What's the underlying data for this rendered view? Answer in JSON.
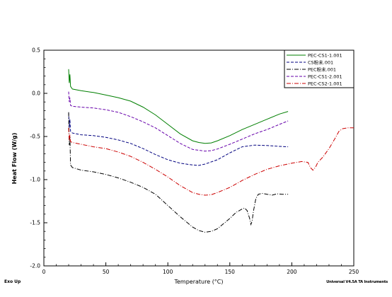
{
  "footer": {
    "left_text": "Exo Up",
    "right_text": "Universal V4.5A TA Instruments"
  },
  "chart_data": {
    "type": "line",
    "xlabel": "Temperature (°C)",
    "ylabel": "Heat Flow (W/g)",
    "xlim": [
      0,
      250
    ],
    "ylim": [
      -2.0,
      0.5
    ],
    "x_ticks": [
      0,
      50,
      100,
      150,
      200,
      250
    ],
    "y_ticks": [
      0.5,
      0.0,
      -0.5,
      -1.0,
      -1.5,
      -2.0
    ],
    "x_tick_labels": [
      "0",
      "50",
      "100",
      "150",
      "200",
      "250"
    ],
    "y_tick_labels": [
      "0.5",
      "0.0",
      "-0.5",
      "-1.0",
      "-1.5",
      "-2.0"
    ],
    "grid": false,
    "legend_position": "top-right",
    "series": [
      {
        "name": "PEC-CS1-1.001",
        "color": "#007f00",
        "dash": "solid",
        "points": [
          [
            20,
            0.28
          ],
          [
            20.5,
            0.12
          ],
          [
            21,
            0.22
          ],
          [
            21.5,
            0.08
          ],
          [
            23,
            0.05
          ],
          [
            30,
            0.03
          ],
          [
            40,
            0.01
          ],
          [
            50,
            -0.02
          ],
          [
            60,
            -0.05
          ],
          [
            70,
            -0.09
          ],
          [
            80,
            -0.16
          ],
          [
            90,
            -0.25
          ],
          [
            100,
            -0.36
          ],
          [
            110,
            -0.47
          ],
          [
            120,
            -0.55
          ],
          [
            125,
            -0.57
          ],
          [
            130,
            -0.58
          ],
          [
            135,
            -0.575
          ],
          [
            140,
            -0.55
          ],
          [
            150,
            -0.49
          ],
          [
            160,
            -0.42
          ],
          [
            170,
            -0.36
          ],
          [
            180,
            -0.3
          ],
          [
            190,
            -0.24
          ],
          [
            197,
            -0.21
          ]
        ]
      },
      {
        "name": "CS粉末.001",
        "color": "#00007f",
        "dash": "dashed",
        "points": [
          [
            20,
            -0.22
          ],
          [
            20.5,
            -0.4
          ],
          [
            21,
            -0.3
          ],
          [
            21.5,
            -0.44
          ],
          [
            23,
            -0.46
          ],
          [
            30,
            -0.48
          ],
          [
            40,
            -0.49
          ],
          [
            50,
            -0.51
          ],
          [
            60,
            -0.54
          ],
          [
            70,
            -0.58
          ],
          [
            80,
            -0.64
          ],
          [
            90,
            -0.71
          ],
          [
            100,
            -0.77
          ],
          [
            110,
            -0.81
          ],
          [
            120,
            -0.83
          ],
          [
            125,
            -0.835
          ],
          [
            130,
            -0.82
          ],
          [
            140,
            -0.77
          ],
          [
            150,
            -0.69
          ],
          [
            160,
            -0.62
          ],
          [
            170,
            -0.6
          ],
          [
            180,
            -0.605
          ],
          [
            190,
            -0.615
          ],
          [
            197,
            -0.62
          ]
        ]
      },
      {
        "name": "PEC粉末.001",
        "color": "#000000",
        "dash": "dash-dot",
        "points": [
          [
            20,
            -0.22
          ],
          [
            20.5,
            -0.6
          ],
          [
            21,
            -0.5
          ],
          [
            21.5,
            -0.83
          ],
          [
            23,
            -0.86
          ],
          [
            30,
            -0.89
          ],
          [
            40,
            -0.91
          ],
          [
            50,
            -0.94
          ],
          [
            60,
            -0.98
          ],
          [
            70,
            -1.03
          ],
          [
            80,
            -1.09
          ],
          [
            90,
            -1.17
          ],
          [
            100,
            -1.3
          ],
          [
            110,
            -1.43
          ],
          [
            120,
            -1.55
          ],
          [
            125,
            -1.59
          ],
          [
            130,
            -1.61
          ],
          [
            135,
            -1.6
          ],
          [
            140,
            -1.57
          ],
          [
            150,
            -1.45
          ],
          [
            155,
            -1.38
          ],
          [
            160,
            -1.34
          ],
          [
            162,
            -1.33
          ],
          [
            164,
            -1.36
          ],
          [
            166,
            -1.45
          ],
          [
            167,
            -1.52
          ],
          [
            168,
            -1.48
          ],
          [
            169,
            -1.37
          ],
          [
            171,
            -1.22
          ],
          [
            173,
            -1.17
          ],
          [
            176,
            -1.16
          ],
          [
            180,
            -1.17
          ],
          [
            184,
            -1.18
          ],
          [
            188,
            -1.165
          ],
          [
            192,
            -1.17
          ],
          [
            197,
            -1.17
          ]
        ]
      },
      {
        "name": "PEC-CS1-2.001",
        "color": "#6600aa",
        "dash": "dashed",
        "points": [
          [
            20,
            0.02
          ],
          [
            20.5,
            -0.1
          ],
          [
            21,
            -0.05
          ],
          [
            21.5,
            -0.14
          ],
          [
            23,
            -0.15
          ],
          [
            30,
            -0.16
          ],
          [
            40,
            -0.17
          ],
          [
            50,
            -0.19
          ],
          [
            60,
            -0.22
          ],
          [
            70,
            -0.27
          ],
          [
            80,
            -0.33
          ],
          [
            90,
            -0.4
          ],
          [
            100,
            -0.49
          ],
          [
            110,
            -0.58
          ],
          [
            120,
            -0.65
          ],
          [
            125,
            -0.66
          ],
          [
            130,
            -0.67
          ],
          [
            135,
            -0.665
          ],
          [
            140,
            -0.645
          ],
          [
            150,
            -0.59
          ],
          [
            160,
            -0.53
          ],
          [
            170,
            -0.47
          ],
          [
            180,
            -0.42
          ],
          [
            190,
            -0.36
          ],
          [
            197,
            -0.32
          ]
        ]
      },
      {
        "name": "PEC-CS2-1.001",
        "color": "#cc0000",
        "dash": "dash-dot",
        "points": [
          [
            20,
            -0.4
          ],
          [
            20.5,
            -0.55
          ],
          [
            21,
            -0.48
          ],
          [
            21.5,
            -0.56
          ],
          [
            23,
            -0.57
          ],
          [
            30,
            -0.59
          ],
          [
            40,
            -0.62
          ],
          [
            50,
            -0.64
          ],
          [
            60,
            -0.68
          ],
          [
            70,
            -0.73
          ],
          [
            80,
            -0.8
          ],
          [
            90,
            -0.88
          ],
          [
            100,
            -0.97
          ],
          [
            110,
            -1.07
          ],
          [
            120,
            -1.15
          ],
          [
            125,
            -1.17
          ],
          [
            130,
            -1.18
          ],
          [
            135,
            -1.175
          ],
          [
            140,
            -1.15
          ],
          [
            150,
            -1.09
          ],
          [
            160,
            -1.01
          ],
          [
            170,
            -0.94
          ],
          [
            180,
            -0.88
          ],
          [
            190,
            -0.84
          ],
          [
            200,
            -0.81
          ],
          [
            208,
            -0.79
          ],
          [
            213,
            -0.8
          ],
          [
            215,
            -0.86
          ],
          [
            217,
            -0.89
          ],
          [
            219,
            -0.86
          ],
          [
            221,
            -0.8
          ],
          [
            225,
            -0.74
          ],
          [
            230,
            -0.64
          ],
          [
            235,
            -0.52
          ],
          [
            238,
            -0.44
          ],
          [
            241,
            -0.41
          ],
          [
            245,
            -0.4
          ],
          [
            250,
            -0.4
          ]
        ]
      }
    ]
  }
}
